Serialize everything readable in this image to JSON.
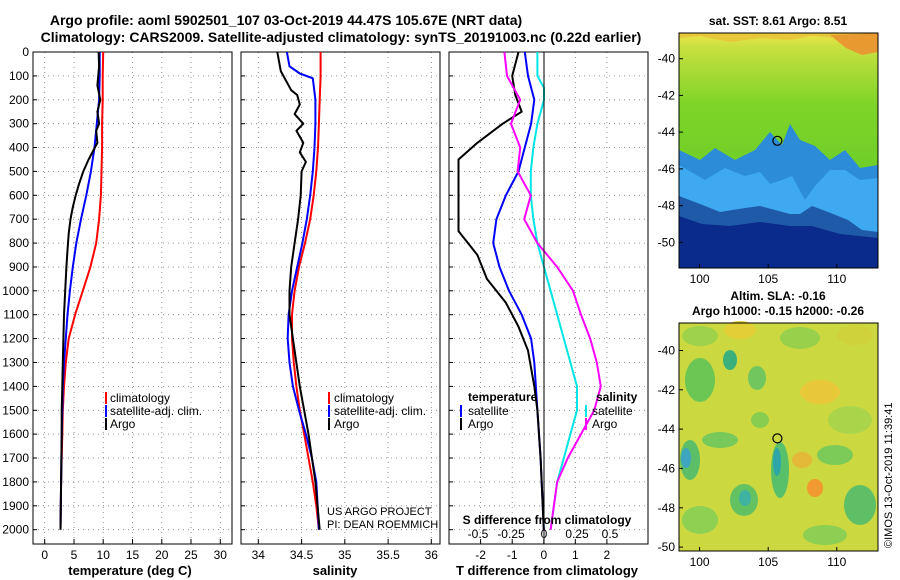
{
  "title": {
    "line1": "Argo profile: aoml 5902501_107 03-Oct-2019 44.47S 105.67E (NRT data)",
    "line2": "Climatology: CARS2009. Satellite-adjusted climatology: synTS_20191003.nc (0.22d earlier)"
  },
  "colors": {
    "climatology": "#ff0000",
    "satellite": "#0000ff",
    "argo": "#000000",
    "sat_salinity": "#00e5e5",
    "argo_salinity": "#ff00ff"
  },
  "credits": {
    "line1": "US ARGO PROJECT",
    "line2": "PI: DEAN ROEMMICH"
  },
  "imos_stamp": "©IMOS 13-Oct-2019 11:39:41",
  "chart_data": [
    {
      "id": "temperature",
      "type": "line",
      "xlabel": "temperature (deg C)",
      "ylabel": "",
      "xlim": [
        -2,
        32
      ],
      "ylim": [
        2060,
        0
      ],
      "xticks": [
        "0",
        "5",
        "10",
        "15",
        "20",
        "25",
        "30"
      ],
      "yticks": [
        "0",
        "100",
        "200",
        "300",
        "400",
        "500",
        "600",
        "700",
        "800",
        "900",
        "1000",
        "1100",
        "1200",
        "1300",
        "1400",
        "1500",
        "1600",
        "1700",
        "1800",
        "1900",
        "2000"
      ],
      "legend": [
        "climatology",
        "satellite-adj. clim.",
        "Argo"
      ],
      "series": [
        {
          "name": "climatology",
          "color": "#ff0000",
          "x": [
            10,
            9.9,
            9.9,
            9.8,
            9.8,
            9.7,
            9.6,
            9.3,
            8.8,
            7.8,
            6.5,
            5.2,
            4.1,
            3.6,
            3.3,
            3.1,
            3.0,
            2.9,
            2.8,
            2.7
          ],
          "y": [
            0,
            100,
            200,
            300,
            400,
            500,
            600,
            700,
            800,
            900,
            1000,
            1100,
            1200,
            1300,
            1400,
            1500,
            1600,
            1700,
            1800,
            2000
          ]
        },
        {
          "name": "satellite-adj. clim.",
          "color": "#0000ff",
          "x": [
            9.4,
            9.4,
            9.3,
            8.9,
            8.5,
            7.9,
            7.1,
            6.2,
            5.4,
            4.8,
            4.3,
            3.9,
            3.6,
            3.3,
            3.1,
            3.0,
            2.9,
            2.8,
            2.7
          ],
          "y": [
            0,
            100,
            200,
            300,
            400,
            500,
            600,
            700,
            800,
            900,
            1000,
            1100,
            1200,
            1300,
            1400,
            1500,
            1600,
            1800,
            2000
          ]
        },
        {
          "name": "Argo",
          "color": "#000000",
          "x": [
            9.2,
            9.3,
            9.0,
            9.5,
            9.0,
            9.3,
            8.8,
            9.0,
            7.5,
            6.6,
            5.9,
            5.3,
            4.8,
            4.4,
            4.1,
            3.9,
            3.7,
            3.5,
            3.3,
            3.2,
            3.1,
            3.0,
            2.9,
            2.9,
            2.8,
            2.7
          ],
          "y": [
            0,
            60,
            140,
            200,
            250,
            300,
            330,
            380,
            450,
            500,
            550,
            600,
            650,
            700,
            760,
            830,
            900,
            1000,
            1100,
            1200,
            1300,
            1400,
            1500,
            1600,
            1800,
            2000
          ]
        }
      ]
    },
    {
      "id": "salinity",
      "type": "line",
      "xlabel": "salinity",
      "ylabel": "",
      "xlim": [
        33.8,
        36.1
      ],
      "ylim": [
        2060,
        0
      ],
      "xticks": [
        "34",
        "34.5",
        "35",
        "35.5",
        "36"
      ],
      "legend": [
        "climatology",
        "satellite-adj. clim.",
        "Argo"
      ],
      "series": [
        {
          "name": "climatology",
          "color": "#ff0000",
          "x": [
            34.72,
            34.72,
            34.71,
            34.7,
            34.69,
            34.67,
            34.64,
            34.6,
            34.54,
            34.47,
            34.42,
            34.39,
            34.39,
            34.41,
            34.44,
            34.48,
            34.53,
            34.58,
            34.63,
            34.67,
            34.7
          ],
          "y": [
            0,
            100,
            200,
            300,
            400,
            500,
            600,
            700,
            800,
            900,
            1000,
            1100,
            1200,
            1300,
            1400,
            1500,
            1600,
            1700,
            1800,
            1900,
            2000
          ]
        },
        {
          "name": "satellite-adj. clim.",
          "color": "#0000ff",
          "x": [
            34.33,
            34.36,
            34.48,
            34.63,
            34.66,
            34.66,
            34.65,
            34.63,
            34.6,
            34.56,
            34.51,
            34.45,
            34.39,
            34.35,
            34.34,
            34.36,
            34.4,
            34.47,
            34.55,
            34.62,
            34.67,
            34.7
          ],
          "y": [
            0,
            60,
            90,
            110,
            200,
            300,
            400,
            500,
            600,
            700,
            800,
            900,
            1000,
            1100,
            1200,
            1300,
            1400,
            1500,
            1600,
            1700,
            1800,
            2000
          ]
        },
        {
          "name": "Argo",
          "color": "#000000",
          "x": [
            34.22,
            34.26,
            34.32,
            34.38,
            34.45,
            34.48,
            34.42,
            34.52,
            34.44,
            34.52,
            34.48,
            34.55,
            34.5,
            34.49,
            34.46,
            34.42,
            34.38,
            34.36,
            34.36,
            34.4,
            34.48,
            34.58,
            34.66,
            34.71
          ],
          "y": [
            0,
            80,
            120,
            160,
            180,
            220,
            260,
            300,
            330,
            380,
            420,
            460,
            500,
            600,
            700,
            800,
            900,
            1000,
            1100,
            1200,
            1400,
            1600,
            1800,
            2000
          ]
        }
      ]
    },
    {
      "id": "difference",
      "type": "line",
      "xlabel": "T difference from climatology",
      "xlim": [
        -3,
        3.3
      ],
      "ylim": [
        2060,
        0
      ],
      "xticks": [
        "-2",
        "-1",
        "0",
        "1",
        "2"
      ],
      "s_axis_label": "S difference from climatology",
      "s_ticks": [
        "-0.5",
        "-0.25",
        "0",
        "0.25",
        "0.5"
      ],
      "legend_temperature": [
        "temperature",
        "satellite",
        "Argo"
      ],
      "legend_salinity": [
        "salinity",
        "satellite",
        "Argo"
      ],
      "series": [
        {
          "name": "T satellite",
          "color": "#0000ff",
          "x": [
            -0.6,
            -0.5,
            -0.3,
            -0.4,
            -0.6,
            -0.8,
            -1.2,
            -1.5,
            -1.6,
            -1.4,
            -1.1,
            -0.7,
            -0.4,
            -0.3,
            -0.2,
            -0.1,
            0
          ],
          "y": [
            0,
            100,
            200,
            300,
            400,
            500,
            600,
            700,
            800,
            900,
            1000,
            1100,
            1200,
            1300,
            1500,
            1700,
            2000
          ]
        },
        {
          "name": "T Argo",
          "color": "#000000",
          "x": [
            -0.8,
            -1.0,
            -0.9,
            -0.7,
            -1.3,
            -2.1,
            -2.7,
            -2.7,
            -2.1,
            -1.8,
            -1.2,
            -0.8,
            -0.5,
            -0.3,
            -0.2,
            -0.1,
            0
          ],
          "y": [
            0,
            100,
            180,
            250,
            300,
            380,
            450,
            750,
            850,
            950,
            1050,
            1150,
            1250,
            1400,
            1500,
            1700,
            2000
          ]
        },
        {
          "name": "S satellite",
          "color": "#00e5e5",
          "x": [
            -0.05,
            -0.05,
            0,
            0,
            -0.05,
            -0.08,
            -0.1,
            -0.1,
            -0.08,
            -0.05,
            0,
            0.05,
            0.1,
            0.15,
            0.2,
            0.25,
            0.25,
            0.2,
            0.15,
            0.1,
            0.05
          ],
          "y": [
            0,
            100,
            150,
            200,
            300,
            400,
            500,
            600,
            700,
            800,
            900,
            1000,
            1100,
            1200,
            1300,
            1400,
            1500,
            1600,
            1700,
            1800,
            2000
          ]
        },
        {
          "name": "S Argo",
          "color": "#ff00ff",
          "x": [
            -0.3,
            -0.28,
            -0.18,
            -0.25,
            -0.18,
            -0.2,
            -0.1,
            -0.15,
            -0.05,
            0.1,
            0.22,
            0.28,
            0.35,
            0.4,
            0.43,
            0.38,
            0.28,
            0.18,
            0.1,
            0.05
          ],
          "y": [
            0,
            100,
            200,
            300,
            400,
            500,
            600,
            700,
            800,
            900,
            1000,
            1100,
            1200,
            1300,
            1400,
            1500,
            1600,
            1700,
            1800,
            2000
          ]
        }
      ]
    },
    {
      "id": "sst_map",
      "type": "heatmap",
      "title": "sat. SST: 8.61 Argo: 8.51",
      "xlim": [
        98.5,
        113
      ],
      "ylim": [
        -51.4,
        -38.6
      ],
      "xticks": [
        "100",
        "105",
        "110"
      ],
      "yticks": [
        "-40",
        "-42",
        "-44",
        "-46",
        "-48",
        "-50"
      ],
      "float_position": {
        "lon": 105.67,
        "lat": -44.47
      }
    },
    {
      "id": "sla_map",
      "type": "heatmap",
      "title": "Altim. SLA: -0.16",
      "subtitle": "Argo h1000: -0.15 h2000: -0.26",
      "xlim": [
        98.5,
        113
      ],
      "ylim": [
        -50.2,
        -38.6
      ],
      "xticks": [
        "100",
        "105",
        "110"
      ],
      "yticks": [
        "-40",
        "-42",
        "-44",
        "-46",
        "-48",
        "-50"
      ],
      "float_position": {
        "lon": 105.67,
        "lat": -44.47
      }
    }
  ]
}
